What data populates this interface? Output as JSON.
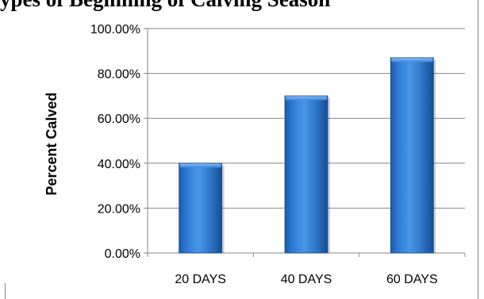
{
  "chart_data": {
    "type": "bar",
    "title": "ypes of Beginning of Calving Season",
    "categories": [
      "20 DAYS",
      "40 DAYS",
      "60 DAYS"
    ],
    "series": [
      {
        "values": [
          40,
          70,
          87
        ],
        "color": "#2E75C8"
      }
    ],
    "xlabel": "",
    "ylabel": "Percent Calved",
    "ylim": [
      0,
      100
    ],
    "ytick_step": 20,
    "ytick_labels": [
      "0.00%",
      "20.00%",
      "40.00%",
      "60.00%",
      "80.00%",
      "100.00%"
    ],
    "grid": true,
    "legend": "none"
  }
}
